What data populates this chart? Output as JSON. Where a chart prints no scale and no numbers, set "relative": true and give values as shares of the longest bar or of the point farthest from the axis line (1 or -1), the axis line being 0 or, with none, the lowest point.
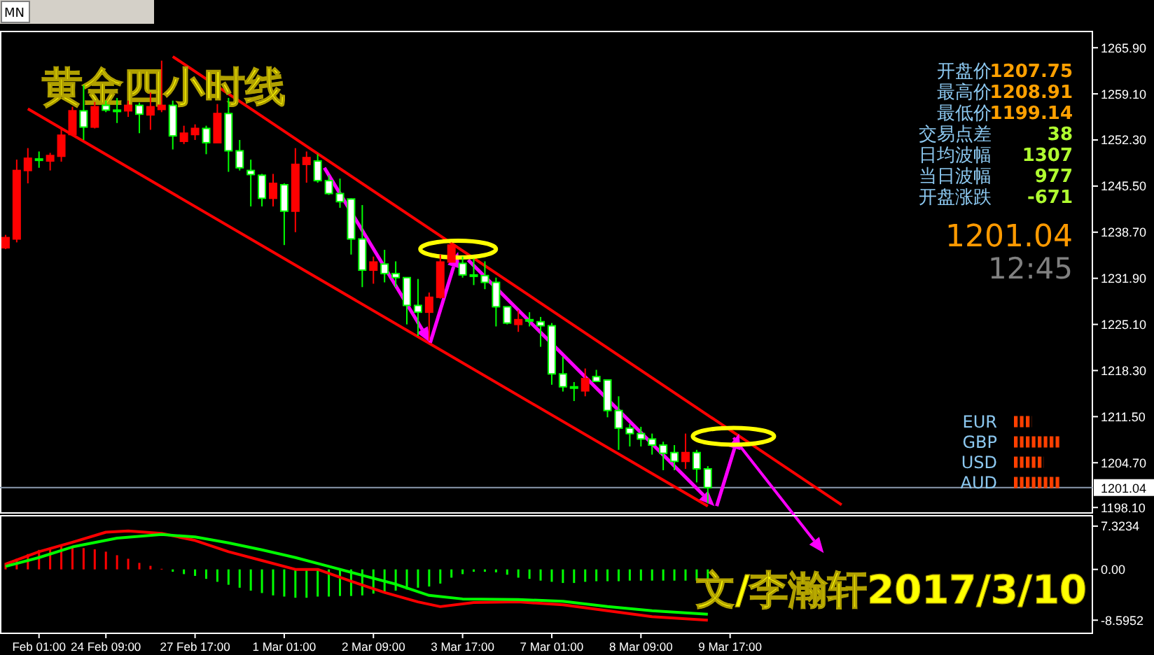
{
  "chart_data": [
    {
      "type": "candlestick",
      "title": "黄金四小时线",
      "categories": [
        null,
        null,
        null,
        null,
        null,
        null,
        null,
        null,
        null,
        null,
        null,
        null,
        null,
        null,
        null,
        null,
        null,
        null,
        null,
        null,
        null,
        null,
        null,
        null,
        null,
        null,
        null,
        null,
        null,
        null,
        null,
        null,
        null,
        null,
        null,
        null,
        null,
        null,
        null,
        null,
        null,
        null,
        null,
        null,
        null,
        null,
        null,
        null,
        null,
        null,
        null,
        null,
        null,
        null,
        null,
        null,
        null,
        null,
        null,
        null,
        null,
        null,
        null,
        null,
        null,
        null,
        null,
        null,
        null,
        null,
        null,
        null,
        null,
        null,
        null,
        null,
        null,
        null,
        null,
        null,
        null,
        null,
        null,
        null,
        null,
        null,
        null,
        null,
        null,
        null,
        null,
        null,
        null,
        null,
        null,
        null,
        null,
        null
      ],
      "ohlc": [
        [
          1236.4,
          1238.3,
          1236.2,
          1237.9
        ],
        [
          1237.7,
          1249.4,
          1237.2,
          1247.8
        ],
        [
          1247.8,
          1251.1,
          1245.9,
          1249.6
        ],
        [
          1249.5,
          1250.6,
          1248.2,
          1249.4
        ],
        [
          1249.2,
          1250.4,
          1247.8,
          1250.0
        ],
        [
          1249.9,
          1254.0,
          1249.1,
          1253.0
        ],
        [
          1253.1,
          1257.2,
          1252.9,
          1256.6
        ],
        [
          1256.6,
          1260.4,
          1252.3,
          1254.2
        ],
        [
          1254.2,
          1257.9,
          1254.0,
          1257.2
        ],
        [
          1257.4,
          1258.1,
          1256.4,
          1256.7
        ],
        [
          1256.7,
          1258.5,
          1254.8,
          1256.6
        ],
        [
          1256.6,
          1258.1,
          1255.7,
          1257.4
        ],
        [
          1257.4,
          1257.8,
          1253.3,
          1256.1
        ],
        [
          1256.0,
          1259.3,
          1253.8,
          1257.2
        ],
        [
          1256.8,
          1264.0,
          1256.4,
          1257.4
        ],
        [
          1257.4,
          1258.1,
          1250.9,
          1252.9
        ],
        [
          1252.1,
          1254.4,
          1251.7,
          1253.3
        ],
        [
          1253.1,
          1254.6,
          1252.3,
          1254.0
        ],
        [
          1254.0,
          1254.4,
          1250.2,
          1251.9
        ],
        [
          1251.9,
          1257.6,
          1251.9,
          1256.2
        ],
        [
          1256.2,
          1258.5,
          1247.6,
          1250.7
        ],
        [
          1250.7,
          1252.3,
          1247.8,
          1248.2
        ],
        [
          1247.8,
          1249.4,
          1242.5,
          1247.2
        ],
        [
          1247.1,
          1247.3,
          1242.5,
          1243.7
        ],
        [
          1243.7,
          1247.3,
          1242.5,
          1245.9
        ],
        [
          1245.7,
          1245.9,
          1236.8,
          1241.8
        ],
        [
          1241.8,
          1251.1,
          1238.7,
          1248.7
        ],
        [
          1248.7,
          1250.6,
          1246.0,
          1249.7
        ],
        [
          1249.2,
          1250.2,
          1246.0,
          1246.3
        ],
        [
          1246.3,
          1247.1,
          1244.2,
          1244.4
        ],
        [
          1244.4,
          1246.6,
          1242.3,
          1243.2
        ],
        [
          1243.6,
          1243.7,
          1235.4,
          1237.7
        ],
        [
          1237.7,
          1242.7,
          1230.6,
          1233.1
        ],
        [
          1233.1,
          1235.1,
          1231.1,
          1234.3
        ],
        [
          1234.0,
          1236.1,
          1231.3,
          1232.6
        ],
        [
          1232.6,
          1234.4,
          1230.6,
          1232.0
        ],
        [
          1232.0,
          1232.0,
          1225.1,
          1227.9
        ],
        [
          1227.9,
          1231.8,
          1223.4,
          1226.9
        ],
        [
          1226.9,
          1229.8,
          1222.7,
          1229.1
        ],
        [
          1229.1,
          1235.4,
          1228.9,
          1234.3
        ],
        [
          1234.3,
          1237.2,
          1234.3,
          1236.8
        ],
        [
          1234.1,
          1235.1,
          1232.0,
          1232.4
        ],
        [
          1232.4,
          1234.8,
          1230.9,
          1232.3
        ],
        [
          1232.3,
          1234.4,
          1230.3,
          1231.3
        ],
        [
          1231.3,
          1232.0,
          1224.8,
          1227.7
        ],
        [
          1227.7,
          1227.7,
          1225.1,
          1225.3
        ],
        [
          1225.1,
          1227.2,
          1224.0,
          1225.8
        ],
        [
          1225.8,
          1226.9,
          1224.8,
          1225.7
        ],
        [
          1225.5,
          1226.2,
          1221.8,
          1224.9
        ],
        [
          1224.9,
          1225.3,
          1216.2,
          1217.8
        ],
        [
          1217.8,
          1220.3,
          1215.2,
          1215.9
        ],
        [
          1215.9,
          1216.6,
          1213.8,
          1215.8
        ],
        [
          1215.3,
          1218.6,
          1214.5,
          1217.1
        ],
        [
          1217.4,
          1218.4,
          1216.6,
          1216.7
        ],
        [
          1216.9,
          1216.9,
          1211.4,
          1212.4
        ],
        [
          1212.4,
          1214.5,
          1206.6,
          1209.8
        ],
        [
          1209.8,
          1210.4,
          1207.1,
          1209.0
        ],
        [
          1209.0,
          1210.0,
          1207.1,
          1208.2
        ],
        [
          1208.2,
          1209.0,
          1205.9,
          1207.3
        ],
        [
          1207.3,
          1207.8,
          1203.6,
          1206.1
        ],
        [
          1206.2,
          1207.3,
          1203.6,
          1204.9
        ],
        [
          1204.9,
          1209.0,
          1203.8,
          1206.2
        ],
        [
          1206.2,
          1206.6,
          1201.8,
          1203.8
        ],
        [
          1203.8,
          1204.2,
          1198.7,
          1201.04
        ],
        null,
        null,
        null,
        null,
        null,
        null,
        null,
        null,
        null,
        null,
        null,
        null,
        null,
        null,
        null,
        null,
        null,
        null,
        null,
        null,
        null,
        null,
        null,
        null,
        null,
        null,
        null,
        null,
        null,
        null,
        null,
        null,
        null,
        null
      ],
      "series": [
        {
          "type": "line",
          "color": "#ff0000",
          "values": [
            null,
            null,
            null,
            null,
            null,
            null,
            null,
            null,
            null,
            null,
            null,
            null,
            null,
            null,
            null,
            1264.6,
            null,
            null,
            null,
            null,
            null,
            null,
            null,
            null,
            null,
            null,
            null,
            null,
            null,
            null,
            null,
            null,
            null,
            null,
            null,
            null,
            null,
            null,
            null,
            null,
            null,
            null,
            null,
            null,
            null,
            null,
            null,
            null,
            null,
            null,
            null,
            null,
            null,
            null,
            null,
            null,
            null,
            null,
            null,
            null,
            null,
            null,
            null,
            null,
            null,
            null,
            null,
            null,
            null,
            null,
            null,
            null,
            null,
            null,
            null,
            1198.5,
            null,
            null,
            null,
            null,
            null,
            null,
            null,
            null,
            null,
            null,
            null,
            null,
            null,
            null,
            null,
            null,
            null,
            null,
            null,
            null,
            null,
            null
          ]
        },
        {
          "type": "line",
          "color": "#ff0000",
          "values": [
            null,
            null,
            1256.9,
            null,
            null,
            null,
            null,
            null,
            null,
            null,
            null,
            null,
            null,
            null,
            null,
            null,
            null,
            null,
            null,
            null,
            null,
            null,
            null,
            null,
            null,
            null,
            null,
            null,
            null,
            null,
            null,
            null,
            null,
            null,
            null,
            null,
            null,
            null,
            null,
            null,
            null,
            null,
            null,
            null,
            null,
            null,
            null,
            null,
            null,
            null,
            null,
            null,
            null,
            null,
            null,
            null,
            null,
            null,
            null,
            null,
            null,
            null,
            null,
            1198.3,
            null,
            null,
            null,
            null,
            null,
            null,
            null,
            null,
            null,
            null,
            null,
            null,
            null,
            null,
            null,
            null,
            null,
            null,
            null,
            null,
            null,
            null,
            null,
            null,
            null,
            null,
            null,
            null,
            null,
            null,
            null,
            null,
            null,
            null
          ]
        }
      ],
      "ylim": [
        1197.4,
        1268.4
      ],
      "yticks": [
        {
          "value": 1265.9,
          "label": "1265.90"
        },
        {
          "value": 1259.1,
          "label": "1259.10"
        },
        {
          "value": 1252.3,
          "label": "1252.30"
        },
        {
          "value": 1245.5,
          "label": "1245.50"
        },
        {
          "value": 1238.7,
          "label": "1238.70"
        },
        {
          "value": 1231.9,
          "label": "1231.90"
        },
        {
          "value": 1225.1,
          "label": "1225.10"
        },
        {
          "value": 1218.3,
          "label": "1218.30"
        },
        {
          "value": 1211.5,
          "label": "1211.50"
        },
        {
          "value": 1204.7,
          "label": "1204.70"
        },
        {
          "value": 1198.1,
          "label": "1198.10"
        }
      ],
      "ref_lines": [
        {
          "axis": "y",
          "value": 1201.04,
          "label": "1201.04",
          "color": "#8c9cb0"
        }
      ],
      "annotations": [
        "开盘价",
        "1207.75",
        "最高价",
        "1208.91",
        "最低价",
        "1199.14",
        "交易点差",
        "38",
        "日均波幅",
        "1307",
        "当日波幅",
        "977",
        "开盘涨跌",
        "-671",
        "1201.04",
        "12:45",
        "MN"
      ],
      "tick_labels": "y"
    },
    {
      "type": "bar",
      "categories": [
        null,
        null,
        null,
        "Feb 01:00",
        null,
        null,
        null,
        null,
        null,
        "24 Feb 09:00",
        null,
        null,
        null,
        null,
        null,
        null,
        null,
        "27 Feb 17:00",
        null,
        null,
        null,
        null,
        null,
        null,
        null,
        "1 Mar 01:00",
        null,
        null,
        null,
        null,
        null,
        null,
        null,
        "2 Mar 09:00",
        null,
        null,
        null,
        null,
        null,
        null,
        null,
        "3 Mar 17:00",
        null,
        null,
        null,
        null,
        null,
        null,
        null,
        "7 Mar 01:00",
        null,
        null,
        null,
        null,
        null,
        null,
        null,
        "8 Mar 09:00",
        null,
        null,
        null,
        null,
        null,
        null,
        null,
        "9 Mar 17:00",
        null,
        null,
        null,
        null,
        null,
        null,
        null,
        null,
        null,
        null,
        null,
        null,
        null,
        null,
        null,
        null,
        null,
        null,
        null,
        null,
        null,
        null,
        null,
        null,
        null,
        null,
        null,
        null,
        null,
        null,
        null,
        null
      ],
      "series": [
        {
          "type": "bar",
          "values": [
            1.1,
            1.8,
            2.6,
            3.3,
            3.6,
            3.9,
            3.9,
            3.6,
            3.4,
            3.0,
            2.4,
            1.8,
            1.1,
            0.6,
            0.1,
            -0.4,
            -0.8,
            -1.1,
            -1.6,
            -2.1,
            -2.6,
            -3.1,
            -3.6,
            -4.0,
            -4.4,
            -4.6,
            -4.8,
            -4.8,
            -4.6,
            -4.6,
            -4.5,
            -4.5,
            -4.4,
            -4.1,
            -3.9,
            -3.6,
            -3.4,
            -3.1,
            -2.9,
            -2.4,
            -1.4,
            -0.8,
            -0.4,
            -0.4,
            -0.5,
            -0.9,
            -1.4,
            -1.6,
            -1.9,
            -2.1,
            -2.3,
            -2.3,
            -2.1,
            -2.0,
            -2.0,
            -2.0,
            -1.9,
            -1.9,
            -1.9,
            -1.9,
            -1.9,
            -1.9,
            -1.9,
            -1.9,
            null,
            null,
            null,
            null,
            null,
            null,
            null,
            null,
            null,
            null,
            null,
            null,
            null,
            null,
            null,
            null,
            null,
            null,
            null,
            null,
            null,
            null,
            null,
            null,
            null,
            null,
            null,
            null,
            null,
            null,
            null,
            null,
            null,
            null
          ],
          "colors": [
            "#ff0000",
            "#ff0000",
            "#ff0000",
            "#ff0000",
            "#ff0000",
            "#ff0000",
            "#ff0000",
            "#ff0000",
            "#ff0000",
            "#ff0000",
            "#ff0000",
            "#ff0000",
            "#ff0000",
            "#ff0000",
            "#ff0000",
            "#00ff00",
            "#00ff00",
            "#00ff00",
            "#00ff00",
            "#00ff00",
            "#00ff00",
            "#00ff00",
            "#00ff00",
            "#00ff00",
            "#00ff00",
            "#00ff00",
            "#00ff00",
            "#00ff00",
            "#00ff00",
            "#00ff00",
            "#00ff00",
            "#00ff00",
            "#00ff00",
            "#00ff00",
            "#00ff00",
            "#00ff00",
            "#00ff00",
            "#00ff00",
            "#00ff00",
            "#00ff00",
            "#00ff00",
            "#00ff00",
            "#00ff00",
            "#00ff00",
            "#00ff00",
            "#00ff00",
            "#00ff00",
            "#00ff00",
            "#00ff00",
            "#00ff00",
            "#00ff00",
            "#00ff00",
            "#00ff00",
            "#00ff00",
            "#00ff00",
            "#00ff00",
            "#00ff00",
            "#00ff00",
            "#00ff00",
            "#00ff00",
            "#00ff00",
            "#00ff00",
            "#00ff00",
            "#00ff00",
            null,
            null,
            null,
            null,
            null,
            null,
            null,
            null,
            null,
            null,
            null,
            null,
            null,
            null,
            null,
            null,
            null,
            null,
            null,
            null,
            null,
            null,
            null,
            null,
            null,
            null,
            null,
            null,
            null,
            null,
            null,
            null,
            null,
            null
          ]
        },
        {
          "type": "line",
          "color": "#ff0000",
          "values": [
            0.9,
            null,
            null,
            3.0,
            null,
            null,
            4.6,
            null,
            null,
            6.3,
            null,
            6.5,
            null,
            null,
            6.1,
            null,
            null,
            4.9,
            null,
            null,
            3.0,
            null,
            null,
            1.5,
            null,
            null,
            0.0,
            null,
            0.0,
            null,
            null,
            -2.0,
            null,
            null,
            -3.9,
            null,
            null,
            -5.5,
            null,
            -6.3,
            null,
            null,
            -5.6,
            null,
            null,
            null,
            -5.5,
            null,
            null,
            null,
            -6.0,
            null,
            null,
            null,
            -7.0,
            null,
            null,
            null,
            -8.0,
            null,
            null,
            null,
            null,
            -8.6,
            null,
            null,
            null,
            null,
            null,
            null,
            null,
            null,
            null,
            null,
            null,
            null,
            null,
            null,
            null,
            null,
            null,
            null,
            null,
            null,
            null,
            null,
            null,
            null,
            null,
            null,
            null,
            null,
            null,
            null,
            null,
            null,
            null,
            null
          ]
        },
        {
          "type": "line",
          "color": "#00ff00",
          "values": [
            0.5,
            null,
            null,
            2.0,
            null,
            null,
            3.8,
            null,
            null,
            null,
            5.3,
            null,
            null,
            null,
            5.9,
            null,
            null,
            5.5,
            null,
            null,
            4.5,
            null,
            null,
            3.3,
            null,
            null,
            2.0,
            null,
            null,
            0.5,
            null,
            null,
            -1.0,
            null,
            null,
            -2.5,
            null,
            null,
            -4.4,
            null,
            null,
            -5.0,
            null,
            null,
            null,
            null,
            -5.1,
            null,
            null,
            null,
            -5.4,
            null,
            null,
            null,
            -6.3,
            null,
            null,
            null,
            -7.0,
            null,
            null,
            null,
            null,
            -7.6,
            null,
            null,
            null,
            null,
            null,
            null,
            null,
            null,
            null,
            null,
            null,
            null,
            null,
            null,
            null,
            null,
            null,
            null,
            null,
            null,
            null,
            null,
            null,
            null,
            null,
            null,
            null,
            null,
            null,
            null,
            null,
            null,
            null,
            null
          ]
        }
      ],
      "ylim": [
        -10.7,
        9.2
      ],
      "yticks": [
        7.3234,
        {
          "value": 0,
          "label": "0.00"
        },
        {
          "value": -8.5952,
          "label": "-8.5952"
        }
      ],
      "annotations": [
        "文/李瀚轩2017/3/10"
      ]
    },
    {
      "type": "bar",
      "orientation": "horizontal",
      "relative": true,
      "categories": [
        "EUR",
        "GBP",
        "USD",
        "AUD"
      ],
      "values": [
        0.375,
        1,
        0.625,
        1
      ],
      "color": "#ff4000"
    }
  ]
}
